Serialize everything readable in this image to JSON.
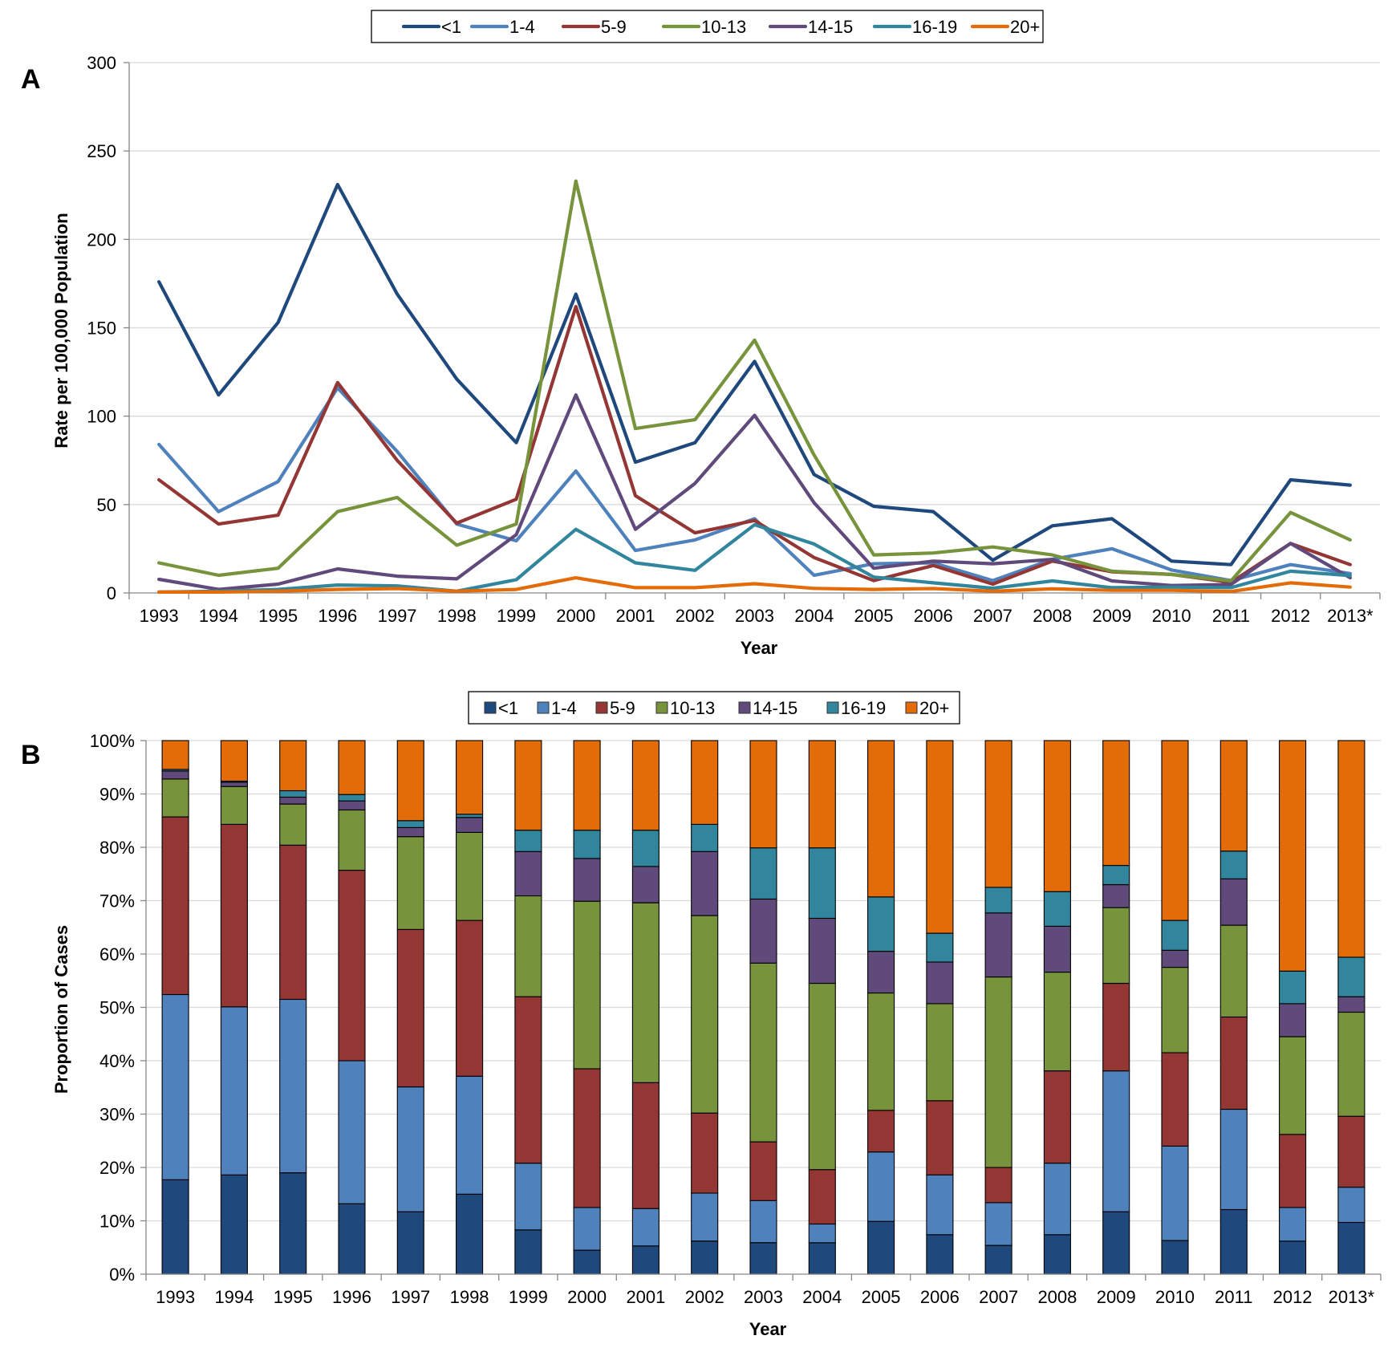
{
  "chart_data": [
    {
      "id": "A",
      "type": "line",
      "panel_label": "A",
      "xlabel": "Year",
      "ylabel": "Rate per 100,000 Population",
      "ylim": [
        0,
        300
      ],
      "yticks": [
        "0",
        "50",
        "100",
        "150",
        "200",
        "250",
        "300"
      ],
      "ytick_values": [
        0,
        50,
        100,
        150,
        200,
        250,
        300
      ],
      "grid": true,
      "legend_position": "top-center",
      "categories": [
        "1993",
        "1994",
        "1995",
        "1996",
        "1997",
        "1998",
        "1999",
        "2000",
        "2001",
        "2002",
        "2003",
        "2004",
        "2005",
        "2006",
        "2007",
        "2008",
        "2009",
        "2010",
        "2011",
        "2012",
        "2013*"
      ],
      "series": [
        {
          "name": "<1",
          "color": "#1f497d",
          "values": [
            176,
            112,
            153,
            231,
            169,
            121,
            85,
            169,
            74,
            85,
            131,
            67,
            49,
            46,
            18.5,
            38,
            42,
            18,
            16,
            64,
            61
          ]
        },
        {
          "name": "1-4",
          "color": "#4f81bd",
          "values": [
            84,
            46,
            63,
            116,
            80,
            39,
            29.5,
            69,
            24,
            30,
            42,
            10,
            16.5,
            17,
            7,
            19,
            25,
            13,
            7,
            16,
            11
          ]
        },
        {
          "name": "5-9",
          "color": "#943634",
          "values": [
            64,
            39,
            44,
            119,
            75,
            39.5,
            53,
            162,
            55,
            34,
            41,
            20,
            7,
            15.5,
            5,
            18,
            12,
            10.5,
            6,
            28,
            16
          ]
        },
        {
          "name": "10-13",
          "color": "#77933c",
          "values": [
            17,
            10,
            14,
            46,
            54,
            27,
            39,
            233,
            93,
            98,
            143,
            78,
            21.5,
            22.6,
            26,
            21.5,
            12.3,
            10.5,
            6.8,
            45.5,
            30
          ]
        },
        {
          "name": "14-15",
          "color": "#604a7b",
          "values": [
            7.7,
            2,
            5,
            13.6,
            9.5,
            8,
            33,
            112,
            36,
            62,
            100.5,
            51,
            14,
            18,
            16.5,
            19,
            6.8,
            4.2,
            4.8,
            28,
            8.6
          ]
        },
        {
          "name": "16-19",
          "color": "#31859c",
          "values": [
            0.5,
            1,
            2,
            4.5,
            4,
            1,
            7.5,
            36,
            17,
            12.8,
            38.6,
            27.7,
            9,
            5.7,
            2.7,
            6.8,
            3,
            3.3,
            3,
            12.3,
            9.8
          ]
        },
        {
          "name": "20+",
          "color": "#e36c09",
          "values": [
            0.5,
            0.5,
            1,
            2,
            2.5,
            1,
            2,
            8.6,
            3,
            3,
            5.2,
            2.6,
            2,
            2.5,
            1,
            2.3,
            1.5,
            1.5,
            0.8,
            5.7,
            3.3
          ]
        }
      ]
    },
    {
      "id": "B",
      "type": "bar",
      "stacked": true,
      "panel_label": "B",
      "xlabel": "Year",
      "ylabel": "Proportion of Cases",
      "ylim": [
        0,
        100
      ],
      "yticks": [
        "0%",
        "10%",
        "20%",
        "30%",
        "40%",
        "50%",
        "60%",
        "70%",
        "80%",
        "90%",
        "100%"
      ],
      "ytick_values": [
        0,
        10,
        20,
        30,
        40,
        50,
        60,
        70,
        80,
        90,
        100
      ],
      "grid": true,
      "legend_position": "top-center",
      "categories": [
        "1993",
        "1994",
        "1995",
        "1996",
        "1997",
        "1998",
        "1999",
        "2000",
        "2001",
        "2002",
        "2003",
        "2004",
        "2005",
        "2006",
        "2007",
        "2008",
        "2009",
        "2010",
        "2011",
        "2012",
        "2013*"
      ],
      "series": [
        {
          "name": "<1",
          "color": "#1f497d",
          "values": [
            17.7,
            18.6,
            19.0,
            13.2,
            11.7,
            15.0,
            8.3,
            4.5,
            5.3,
            6.2,
            5.9,
            5.9,
            9.9,
            7.4,
            5.4,
            7.4,
            11.7,
            6.3,
            12.1,
            6.2,
            9.7
          ]
        },
        {
          "name": "1-4",
          "color": "#4f81bd",
          "values": [
            34.7,
            31.5,
            32.5,
            26.8,
            23.4,
            22.1,
            12.5,
            8.0,
            7.0,
            9.0,
            7.9,
            3.5,
            13.0,
            11.2,
            8.0,
            13.4,
            26.4,
            17.7,
            18.8,
            6.3,
            6.6
          ]
        },
        {
          "name": "5-9",
          "color": "#943634",
          "values": [
            33.3,
            34.2,
            28.9,
            35.7,
            29.5,
            29.2,
            31.2,
            26.0,
            23.6,
            15.0,
            11.0,
            10.2,
            7.8,
            13.9,
            6.6,
            17.3,
            16.4,
            17.5,
            17.3,
            13.7,
            13.3
          ]
        },
        {
          "name": "10-13",
          "color": "#77933c",
          "values": [
            7.1,
            7.1,
            7.7,
            11.3,
            17.4,
            16.5,
            18.9,
            31.4,
            33.7,
            37.0,
            33.5,
            34.9,
            22.0,
            18.2,
            35.7,
            18.5,
            14.2,
            16.0,
            17.2,
            18.3,
            19.5
          ]
        },
        {
          "name": "14-15",
          "color": "#604a7b",
          "values": [
            1.5,
            0.8,
            1.3,
            1.7,
            1.7,
            2.8,
            8.3,
            8.0,
            6.8,
            12.0,
            12.0,
            12.2,
            7.8,
            7.8,
            12.0,
            8.6,
            4.3,
            3.2,
            8.7,
            6.2,
            2.9
          ]
        },
        {
          "name": "16-19",
          "color": "#31859c",
          "values": [
            0.3,
            0.2,
            1.2,
            1.2,
            1.3,
            0.6,
            4.0,
            5.3,
            6.8,
            5.1,
            9.6,
            13.2,
            10.2,
            5.4,
            4.8,
            6.5,
            3.6,
            5.6,
            5.2,
            6.1,
            7.4
          ]
        },
        {
          "name": "20+",
          "color": "#e36c09",
          "values": [
            5.4,
            7.6,
            9.4,
            10.1,
            15.0,
            13.8,
            16.8,
            16.8,
            16.8,
            15.7,
            20.1,
            20.1,
            29.3,
            36.1,
            27.5,
            28.3,
            23.4,
            33.7,
            20.7,
            43.2,
            40.6
          ]
        }
      ]
    }
  ]
}
